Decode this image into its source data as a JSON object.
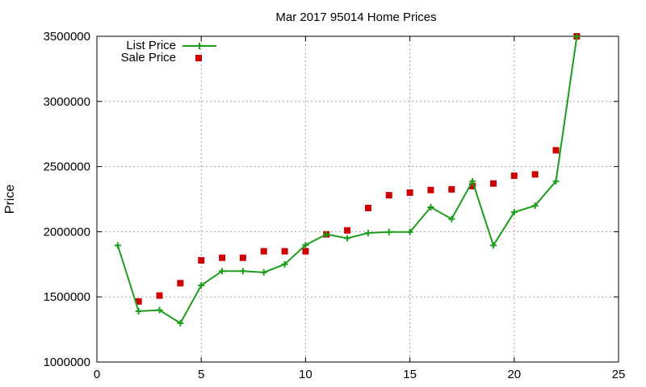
{
  "chart_data": {
    "type": "line",
    "title": "Mar 2017 95014 Home Prices",
    "xlabel": "",
    "ylabel": "Price",
    "xlim": [
      0,
      25
    ],
    "ylim": [
      1000000,
      3500000
    ],
    "xticks": [
      0,
      5,
      10,
      15,
      20,
      25
    ],
    "yticks": [
      1000000,
      1500000,
      2000000,
      2500000,
      3000000,
      3500000
    ],
    "grid": true,
    "legend_position": "top-left",
    "series": [
      {
        "name": "List Price",
        "style": "linespoints",
        "marker": "plus",
        "color": "#1a9e1a",
        "x": [
          1,
          2,
          3,
          4,
          5,
          6,
          7,
          8,
          9,
          10,
          11,
          12,
          13,
          14,
          15,
          16,
          17,
          18,
          19,
          20,
          21,
          22,
          23
        ],
        "y": [
          1895000,
          1390000,
          1398000,
          1298000,
          1588000,
          1698000,
          1698000,
          1688000,
          1750000,
          1898000,
          1980000,
          1950000,
          1990000,
          1998000,
          1998000,
          2188000,
          2098000,
          2388000,
          1895000,
          2150000,
          2200000,
          2388000,
          3498000
        ]
      },
      {
        "name": "Sale Price",
        "style": "points",
        "marker": "square",
        "color": "#cc0000",
        "x": [
          2,
          3,
          4,
          5,
          6,
          7,
          8,
          9,
          10,
          11,
          12,
          13,
          14,
          15,
          16,
          17,
          18,
          19,
          20,
          21,
          22,
          23
        ],
        "y": [
          1465000,
          1510000,
          1605000,
          1780000,
          1800000,
          1800000,
          1850000,
          1850000,
          1850000,
          1980000,
          2010000,
          2182000,
          2280000,
          2300000,
          2320000,
          2325000,
          2350000,
          2370000,
          2430000,
          2440000,
          2625000,
          3500000
        ]
      }
    ]
  }
}
